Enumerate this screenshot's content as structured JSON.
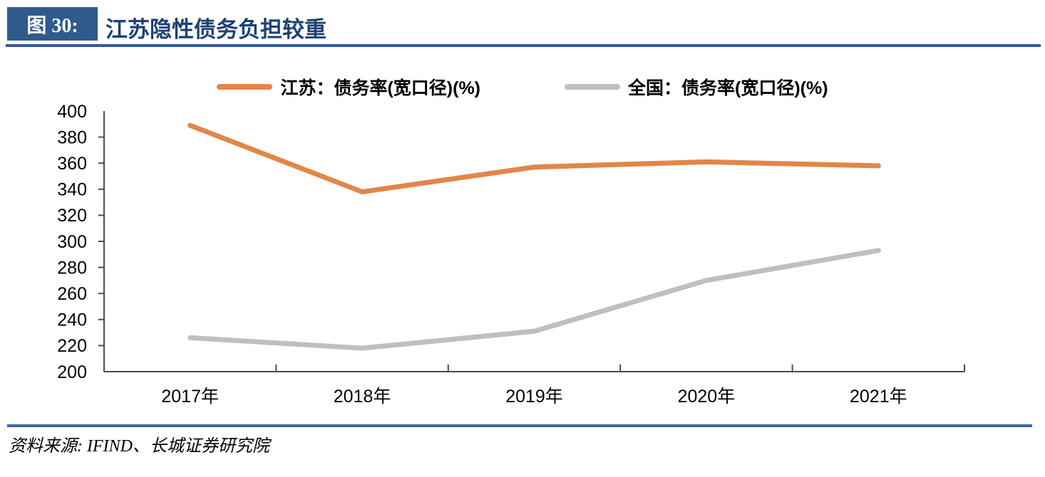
{
  "header": {
    "figure_label": "图 30:",
    "title": "江苏隐性债务负担较重"
  },
  "footer": {
    "source": "资料来源: IFIND、长城证券研究院"
  },
  "colors": {
    "badge_bg": "#2F5A8C",
    "title_text": "#1F4073",
    "rule_top": "#2F5A9E",
    "rule_bottom": "#3A64A8",
    "axis_line": "#4D4D4D",
    "tick_label": "#000000",
    "series_jiangsu": "#E2864A",
    "series_national": "#BFBFBF"
  },
  "chart_data": {
    "type": "line",
    "title": "",
    "xlabel": "",
    "ylabel": "",
    "categories": [
      "2017年",
      "2018年",
      "2019年",
      "2020年",
      "2021年"
    ],
    "series": [
      {
        "name": "江苏：债务率(宽口径)(%)",
        "color": "#E2864A",
        "values": [
          389,
          338,
          357,
          361,
          358
        ]
      },
      {
        "name": "全国：债务率(宽口径)(%)",
        "color": "#BFBFBF",
        "values": [
          226,
          218,
          231,
          270,
          293
        ]
      }
    ],
    "ylim": [
      200,
      400
    ],
    "ytick_step": 20,
    "yticks": [
      200,
      220,
      240,
      260,
      280,
      300,
      320,
      340,
      360,
      380,
      400
    ],
    "grid": false,
    "legend_position": "top-center"
  }
}
